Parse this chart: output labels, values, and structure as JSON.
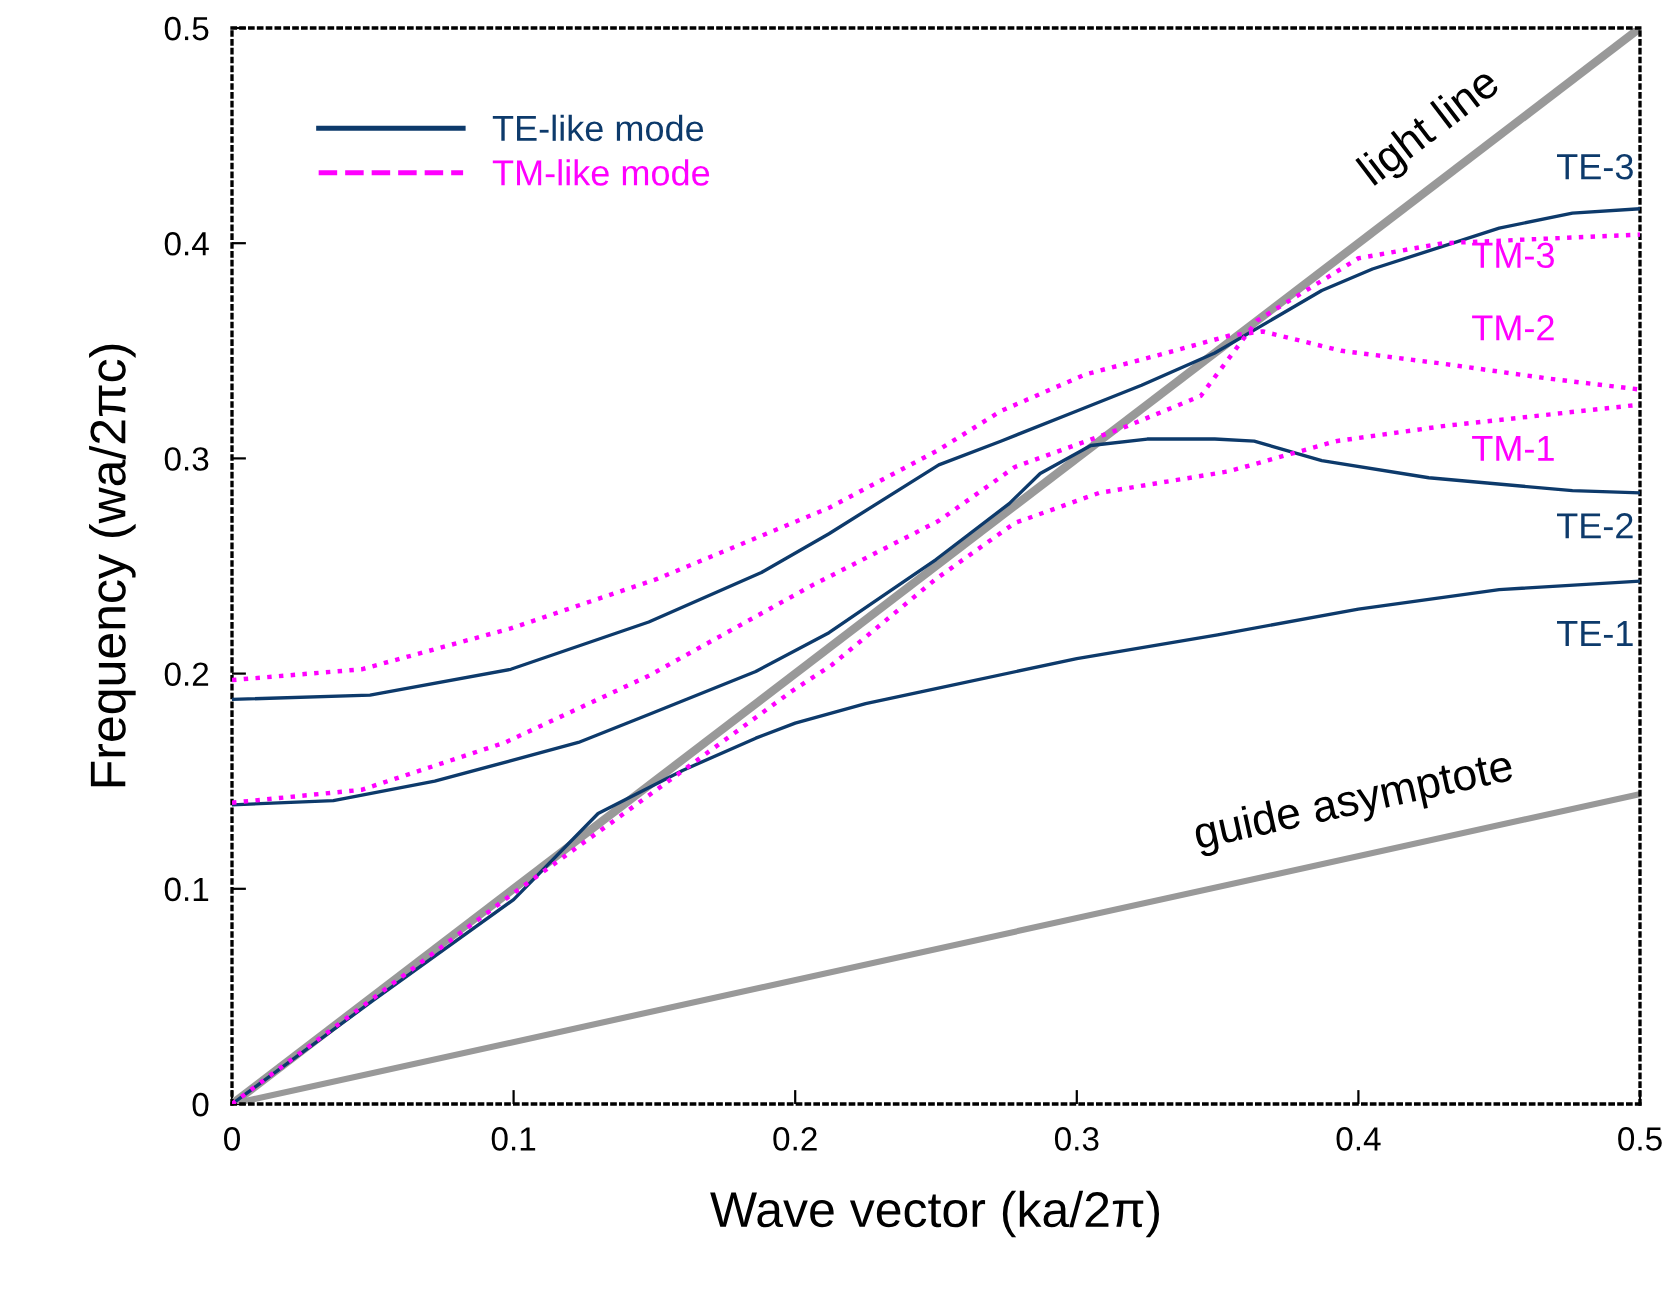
{
  "chart_data": {
    "type": "line",
    "xlabel": "Wave vector (ka/2π)",
    "ylabel": "Frequency (wa/2πc)",
    "xlim": [
      0,
      0.5
    ],
    "ylim": [
      0,
      0.5
    ],
    "xticks": [
      0,
      0.1,
      0.2,
      0.3,
      0.4,
      0.5
    ],
    "yticks": [
      0,
      0.1,
      0.2,
      0.3,
      0.4,
      0.5
    ],
    "grid": false,
    "legend": "top left",
    "annotations": [
      {
        "text": "TE-1",
        "x": 0.5,
        "y": 0.243
      },
      {
        "text": "TE-2",
        "x": 0.5,
        "y": 0.284
      },
      {
        "text": "TE-3",
        "x": 0.5,
        "y": 0.416
      },
      {
        "text": "TM-1",
        "x": 0.47,
        "y": 0.32
      },
      {
        "text": "TM-2",
        "x": 0.47,
        "y": 0.336
      },
      {
        "text": "TM-3",
        "x": 0.47,
        "y": 0.402
      },
      {
        "text": "light line",
        "x": 0.43,
        "y": 0.43
      },
      {
        "text": "guide asymptote",
        "x": 0.4,
        "y": 0.115
      }
    ],
    "series": [
      {
        "name": "TE-like mode",
        "color": "#0d3a6b",
        "line_style": "solid",
        "x": [
          0,
          0.05,
          0.1,
          0.13,
          0.16,
          0.186,
          0.2,
          0.225,
          0.25,
          0.3,
          0.35,
          0.4,
          0.45,
          0.5,
          null,
          0,
          0.036,
          0.072,
          0.123,
          0.148,
          0.186,
          0.212,
          0.25,
          0.276,
          0.287,
          0.305,
          0.325,
          0.349,
          0.363,
          0.387,
          0.425,
          0.476,
          0.5,
          null,
          0,
          0.049,
          0.099,
          0.148,
          0.188,
          0.212,
          0.251,
          0.273,
          0.3,
          0.323,
          0.349,
          0.387,
          0.405,
          0.45,
          0.476,
          0.5
        ],
        "values": [
          0,
          0.048,
          0.095,
          0.135,
          0.155,
          0.17,
          0.177,
          0.186,
          0.193,
          0.207,
          0.218,
          0.23,
          0.239,
          0.243,
          null,
          0.139,
          0.141,
          0.15,
          0.168,
          0.181,
          0.201,
          0.219,
          0.253,
          0.279,
          0.293,
          0.306,
          0.309,
          0.309,
          0.308,
          0.299,
          0.291,
          0.285,
          0.284,
          null,
          0.188,
          0.19,
          0.202,
          0.224,
          0.247,
          0.265,
          0.297,
          0.308,
          0.322,
          0.334,
          0.349,
          0.378,
          0.388,
          0.407,
          0.414,
          0.416
        ]
      },
      {
        "name": "TM-like mode",
        "color": "#ff00ff",
        "line_style": "dotted",
        "x": [
          0,
          0.1,
          0.135,
          0.199,
          0.213,
          0.25,
          0.278,
          0.308,
          0.354,
          0.392,
          0.43,
          0.5,
          null,
          0,
          0.046,
          0.099,
          0.151,
          0.212,
          0.251,
          0.273,
          0.303,
          0.329,
          0.354,
          0.366,
          0.394,
          0.43,
          0.468,
          0.5,
          null,
          0,
          0.046,
          0.097,
          0.148,
          0.206,
          0.251,
          0.278,
          0.316,
          0.344,
          0.364,
          0.4,
          0.43,
          0.5
        ],
        "values": [
          0,
          0.098,
          0.131,
          0.192,
          0.204,
          0.244,
          0.27,
          0.284,
          0.294,
          0.308,
          0.315,
          0.325,
          null,
          0.197,
          0.202,
          0.221,
          0.244,
          0.277,
          0.304,
          0.322,
          0.339,
          0.348,
          0.357,
          0.359,
          0.35,
          0.344,
          0.337,
          0.332,
          null,
          0.14,
          0.146,
          0.168,
          0.199,
          0.241,
          0.271,
          0.296,
          0.314,
          0.329,
          0.364,
          0.393,
          0.4,
          0.404
        ]
      },
      {
        "color": "#999999",
        "line_style": "solid",
        "x": [
          0,
          0.5
        ],
        "values": [
          0,
          0.5
        ]
      },
      {
        "color": "#999999",
        "line_style": "solid",
        "x": [
          0,
          0.5
        ],
        "values": [
          0,
          0.144
        ]
      }
    ]
  }
}
